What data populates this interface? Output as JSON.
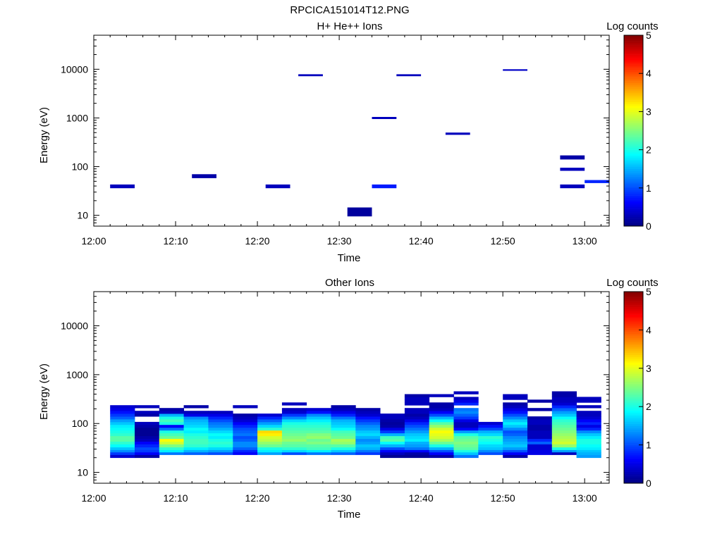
{
  "title": "RPCICA151014T12.PNG",
  "chart_data": [
    {
      "type": "heatmap",
      "title": "H+ He++ Ions",
      "xlabel": "Time",
      "ylabel": "Energy (eV)",
      "xticks": [
        "12:00",
        "12:10",
        "12:20",
        "12:30",
        "12:40",
        "12:50",
        "13:00"
      ],
      "xlim": [
        "12:00",
        "13:03"
      ],
      "yscale": "log",
      "ylim": [
        6,
        50000
      ],
      "yticks": [
        "10",
        "100",
        "1000",
        "10000"
      ],
      "colorbar": {
        "label": "Log counts",
        "range": [
          0,
          5
        ],
        "ticks": [
          "0",
          "1",
          "2",
          "3",
          "4",
          "5"
        ]
      },
      "cells": [
        {
          "t0": "12:02",
          "t1": "12:05",
          "e0": 36,
          "e1": 43,
          "v": 0.3
        },
        {
          "t0": "12:12",
          "t1": "12:15",
          "e0": 58,
          "e1": 70,
          "v": 0.2
        },
        {
          "t0": "12:21",
          "t1": "12:24",
          "e0": 36,
          "e1": 43,
          "v": 0.3
        },
        {
          "t0": "12:25",
          "t1": "12:28",
          "e0": 7200,
          "e1": 7900,
          "v": 0.3
        },
        {
          "t0": "12:31",
          "t1": "12:34",
          "e0": 9.5,
          "e1": 14.5,
          "v": 0.15
        },
        {
          "t0": "12:34",
          "t1": "12:37",
          "e0": 950,
          "e1": 1050,
          "v": 0.3
        },
        {
          "t0": "12:34",
          "t1": "12:37",
          "e0": 36,
          "e1": 43,
          "v": 0.75
        },
        {
          "t0": "12:37",
          "t1": "12:40",
          "e0": 7200,
          "e1": 7900,
          "v": 0.3
        },
        {
          "t0": "12:43",
          "t1": "12:46",
          "e0": 450,
          "e1": 500,
          "v": 0.3
        },
        {
          "t0": "12:50",
          "t1": "12:53",
          "e0": 9300,
          "e1": 10000,
          "v": 0.35
        },
        {
          "t0": "12:57",
          "t1": "13:00",
          "e0": 140,
          "e1": 170,
          "v": 0.2
        },
        {
          "t0": "12:57",
          "t1": "13:00",
          "e0": 82,
          "e1": 95,
          "v": 0.3
        },
        {
          "t0": "12:57",
          "t1": "13:00",
          "e0": 36,
          "e1": 43,
          "v": 0.3
        },
        {
          "t0": "13:00",
          "t1": "13:03",
          "e0": 46,
          "e1": 53,
          "v": 0.8
        }
      ]
    },
    {
      "type": "heatmap",
      "title": "Other Ions",
      "xlabel": "Time",
      "ylabel": "Energy (eV)",
      "xticks": [
        "12:00",
        "12:10",
        "12:20",
        "12:30",
        "12:40",
        "12:50",
        "13:00"
      ],
      "xlim": [
        "12:00",
        "13:03"
      ],
      "yscale": "log",
      "ylim": [
        6,
        50000
      ],
      "yticks": [
        "10",
        "100",
        "1000",
        "10000"
      ],
      "colorbar": {
        "label": "Log counts",
        "range": [
          0,
          5
        ],
        "ticks": [
          "0",
          "1",
          "2",
          "3",
          "4",
          "5"
        ]
      },
      "energy_bins": [
        20,
        23,
        26,
        29,
        33,
        38,
        43,
        49,
        56,
        64,
        73,
        83,
        95,
        108,
        123,
        140,
        160,
        182,
        208,
        237,
        270,
        308,
        351,
        400,
        456
      ],
      "columns": [
        {
          "t0": "12:02",
          "t1": "12:05",
          "values": [
            0.4,
            0.9,
            1.3,
            1.6,
            1.9,
            2.1,
            2.3,
            2.3,
            2.1,
            2.0,
            1.9,
            1.8,
            1.6,
            1.4,
            1.1,
            0.9,
            0.7,
            0.5,
            0.4,
            null,
            null,
            null,
            null,
            null
          ]
        },
        {
          "t0": "12:05",
          "t1": "12:08",
          "values": [
            0.2,
            0.6,
            0.9,
            1.0,
            0.8,
            0.6,
            0.3,
            0.2,
            0.1,
            0.1,
            0.1,
            0.2,
            0.3,
            null,
            null,
            0.2,
            0.3,
            null,
            0.3,
            null,
            null,
            null,
            null,
            null
          ]
        },
        {
          "t0": "12:08",
          "t1": "12:11",
          "values": [
            null,
            1.2,
            1.8,
            2.1,
            2.5,
            2.9,
            3.1,
            2.4,
            2.2,
            2.0,
            1.2,
            0.6,
            2.0,
            2.2,
            2.0,
            1.5,
            0.3,
            0.2,
            null,
            null,
            null,
            null,
            null,
            null
          ]
        },
        {
          "t0": "12:11",
          "t1": "12:14",
          "values": [
            null,
            1.1,
            1.5,
            1.8,
            2.1,
            2.2,
            2.2,
            2.1,
            2.0,
            1.8,
            1.9,
            1.7,
            1.6,
            1.5,
            1.3,
            0.5,
            0.3,
            null,
            0.2,
            null,
            null,
            null,
            null,
            null
          ]
        },
        {
          "t0": "12:14",
          "t1": "12:17",
          "values": [
            null,
            1.0,
            1.4,
            1.7,
            2.0,
            2.1,
            2.0,
            1.8,
            1.9,
            1.7,
            1.5,
            1.3,
            1.2,
            1.0,
            0.8,
            0.5,
            0.3,
            null,
            null,
            null,
            null,
            null,
            null,
            null
          ]
        },
        {
          "t0": "12:17",
          "t1": "12:20",
          "values": [
            null,
            0.6,
            0.8,
            1.1,
            1.3,
            1.3,
            1.1,
            1.0,
            1.2,
            1.1,
            1.0,
            0.8,
            0.6,
            0.4,
            0.3,
            0.2,
            null,
            null,
            0.3,
            null,
            null,
            null,
            null,
            null
          ]
        },
        {
          "t0": "12:20",
          "t1": "12:23",
          "values": [
            null,
            1.4,
            1.8,
            2.0,
            2.4,
            2.6,
            2.8,
            2.9,
            3.2,
            3.3,
            2.1,
            1.7,
            1.4,
            1.1,
            0.8,
            0.4,
            null,
            null,
            null,
            null,
            null,
            null,
            null,
            null
          ]
        },
        {
          "t0": "12:23",
          "t1": "12:26",
          "values": [
            null,
            1.0,
            1.7,
            2.1,
            2.3,
            2.4,
            2.6,
            2.5,
            2.4,
            2.3,
            2.2,
            2.1,
            2.0,
            1.7,
            1.3,
            0.9,
            0.4,
            0.3,
            null,
            0.3,
            null,
            null,
            null,
            null
          ]
        },
        {
          "t0": "12:26",
          "t1": "12:29",
          "values": [
            null,
            1.2,
            1.8,
            2.2,
            2.3,
            2.5,
            2.4,
            2.6,
            2.5,
            2.3,
            2.2,
            2.1,
            2.0,
            1.8,
            1.6,
            1.3,
            0.7,
            0.4,
            null,
            null,
            null,
            null,
            null,
            null
          ]
        },
        {
          "t0": "12:29",
          "t1": "12:32",
          "values": [
            null,
            1.1,
            1.6,
            2.0,
            2.3,
            2.6,
            2.7,
            2.4,
            2.3,
            2.2,
            1.9,
            1.7,
            1.6,
            1.5,
            1.2,
            0.8,
            0.5,
            0.3,
            0.2,
            null,
            null,
            null,
            null,
            null
          ]
        },
        {
          "t0": "12:32",
          "t1": "12:35",
          "values": [
            null,
            0.9,
            1.2,
            1.5,
            1.6,
            1.4,
            1.3,
            1.5,
            1.7,
            1.6,
            1.4,
            1.3,
            1.1,
            0.9,
            0.7,
            0.4,
            0.3,
            0.2,
            null,
            null,
            null,
            null,
            null,
            null
          ]
        },
        {
          "t0": "12:35",
          "t1": "12:38",
          "values": [
            0.1,
            0.3,
            0.6,
            1.0,
            1.5,
            1.9,
            2.3,
            2.2,
            1.5,
            0.9,
            0.5,
            0.2,
            0.15,
            0.2,
            0.3,
            0.3,
            null,
            null,
            null,
            null,
            null,
            null,
            null,
            null
          ]
        },
        {
          "t0": "12:38",
          "t1": "12:41",
          "values": [
            0.1,
            0.2,
            0.6,
            1.2,
            1.4,
            1.5,
            1.8,
            1.7,
            1.6,
            1.4,
            1.2,
            1.0,
            0.8,
            0.5,
            0.3,
            0.2,
            0.3,
            0.3,
            null,
            0.3,
            0.3,
            0.3,
            0.2,
            null
          ]
        },
        {
          "t0": "12:41",
          "t1": "12:44",
          "values": [
            0.2,
            0.6,
            1.0,
            1.5,
            2.0,
            2.4,
            2.7,
            2.9,
            3.0,
            3.1,
            2.9,
            2.6,
            2.3,
            1.9,
            1.5,
            1.0,
            0.6,
            0.3,
            0.2,
            0.2,
            null,
            null,
            0.3,
            null
          ]
        },
        {
          "t0": "12:44",
          "t1": "12:47",
          "values": [
            1.2,
            1.6,
            2.0,
            2.3,
            2.4,
            2.5,
            2.4,
            2.3,
            2.0,
            1.4,
            0.6,
            0.3,
            0.3,
            0.5,
            0.9,
            1.1,
            1.3,
            1.2,
            null,
            0.8,
            0.5,
            0.3,
            null,
            0.3
          ]
        },
        {
          "t0": "12:47",
          "t1": "12:50",
          "values": [
            null,
            1.0,
            1.3,
            1.6,
            1.7,
            1.9,
            2.0,
            2.1,
            1.7,
            1.5,
            1.0,
            0.7,
            0.4,
            null,
            null,
            null,
            null,
            null,
            null,
            null,
            null,
            null,
            null,
            null
          ]
        },
        {
          "t0": "12:50",
          "t1": "12:53",
          "values": [
            0.2,
            0.6,
            1.0,
            1.4,
            1.6,
            1.5,
            1.4,
            1.3,
            1.1,
            1.0,
            1.3,
            1.6,
            1.8,
            1.6,
            1.3,
            1.0,
            0.7,
            0.5,
            0.3,
            0.2,
            null,
            0.3,
            0.3,
            null
          ]
        },
        {
          "t0": "12:53",
          "t1": "12:56",
          "values": [
            null,
            0.5,
            0.5,
            0.4,
            0.4,
            1.1,
            0.8,
            0.3,
            0.3,
            0.3,
            0.2,
            0.2,
            0.3,
            0.3,
            0.2,
            null,
            null,
            0.2,
            null,
            null,
            0.2,
            null,
            null,
            null
          ]
        },
        {
          "t0": "12:56",
          "t1": "12:59",
          "values": [
            null,
            0.3,
            1.4,
            2.0,
            2.6,
            2.9,
            2.8,
            2.7,
            2.6,
            2.5,
            2.4,
            2.3,
            2.2,
            2.1,
            1.9,
            1.6,
            1.4,
            1.1,
            0.8,
            0.4,
            0.3,
            0.3,
            0.2,
            0.2
          ]
        },
        {
          "t0": "12:59",
          "t1": "13:02",
          "values": [
            1.4,
            1.5,
            1.6,
            1.8,
            1.9,
            2.0,
            2.0,
            1.8,
            1.6,
            1.3,
            0.8,
            0.5,
            0.8,
            0.6,
            0.4,
            0.3,
            0.3,
            null,
            0.3,
            null,
            0.3,
            0.3,
            null,
            null
          ]
        }
      ]
    }
  ]
}
